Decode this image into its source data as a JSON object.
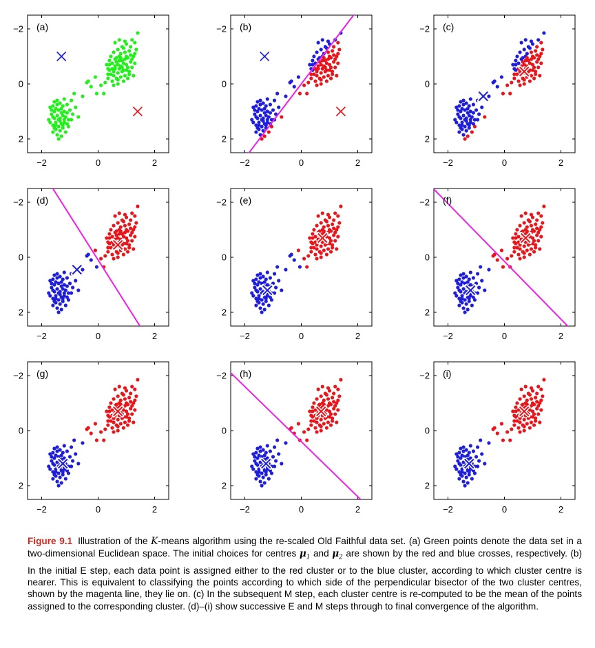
{
  "chart_data": {
    "type": "scatter",
    "title": "Illustration of the K-means algorithm using the re-scaled Old Faithful data set",
    "xlim": [
      -2.5,
      2.5
    ],
    "ylim": [
      -2.5,
      2.5
    ],
    "xticks": [
      -2,
      0,
      2
    ],
    "yticks": [
      -2,
      0,
      2
    ],
    "xtick_labels": [
      "−2",
      "0",
      "2"
    ],
    "ytick_labels": [
      "2",
      "0",
      "−2"
    ],
    "colors": {
      "blue": "#1f1fdb",
      "red": "#e8161b",
      "green": "#22f01a",
      "magenta": "#f01ee8",
      "axis": "#000000"
    },
    "panels": [
      {
        "label": "(a)",
        "stage": "initial",
        "points": "all-green",
        "centers": [
          {
            "x": -1.3,
            "y": 1.0,
            "color": "blue",
            "style": "plain"
          },
          {
            "x": 1.4,
            "y": -1.0,
            "color": "red",
            "style": "plain"
          }
        ],
        "bisector": null,
        "assign_center": null
      },
      {
        "label": "(b)",
        "stage": "E",
        "points": "assigned",
        "centers": [
          {
            "x": -1.3,
            "y": 1.0,
            "color": "blue",
            "style": "plain"
          },
          {
            "x": 1.4,
            "y": -1.0,
            "color": "red",
            "style": "plain"
          }
        ],
        "bisector": {
          "slope": 1.35,
          "intercept": 0.0
        },
        "assign_center": [
          0.05,
          0.0
        ]
      },
      {
        "label": "(c)",
        "stage": "M",
        "points": "assigned",
        "centers": [
          {
            "x": -0.75,
            "y": -0.45,
            "color": "blue",
            "style": "outlined"
          },
          {
            "x": 0.7,
            "y": 0.45,
            "color": "red",
            "style": "outlined"
          }
        ],
        "bisector": null,
        "assign_center": [
          0.05,
          0.0
        ]
      },
      {
        "label": "(d)",
        "stage": "E",
        "points": "assigned",
        "centers": [
          {
            "x": -0.75,
            "y": -0.45,
            "color": "blue",
            "style": "outlined"
          },
          {
            "x": 0.7,
            "y": 0.45,
            "color": "red",
            "style": "outlined"
          }
        ],
        "bisector": {
          "slope": -1.62,
          "intercept": -0.1
        },
        "assign_center": [
          -0.03,
          0.0
        ]
      },
      {
        "label": "(e)",
        "stage": "M",
        "points": "assigned",
        "centers": [
          {
            "x": -1.2,
            "y": -1.2,
            "color": "blue",
            "style": "outlined"
          },
          {
            "x": 0.75,
            "y": 0.7,
            "color": "red",
            "style": "outlined"
          }
        ],
        "bisector": null,
        "assign_center": [
          -0.03,
          0.0
        ]
      },
      {
        "label": "(f)",
        "stage": "E",
        "points": "assigned",
        "centers": [
          {
            "x": -1.2,
            "y": -1.2,
            "color": "blue",
            "style": "outlined"
          },
          {
            "x": 0.75,
            "y": 0.7,
            "color": "red",
            "style": "outlined"
          }
        ],
        "bisector": {
          "slope": -1.05,
          "intercept": -0.15
        },
        "assign_center": [
          -0.15,
          -0.25
        ]
      },
      {
        "label": "(g)",
        "stage": "M",
        "points": "assigned",
        "centers": [
          {
            "x": -1.25,
            "y": -1.2,
            "color": "blue",
            "style": "outlined"
          },
          {
            "x": 0.7,
            "y": 0.7,
            "color": "red",
            "style": "outlined"
          }
        ],
        "bisector": null,
        "assign_center": [
          -0.15,
          -0.25
        ]
      },
      {
        "label": "(h)",
        "stage": "E",
        "points": "assigned",
        "centers": [
          {
            "x": -1.25,
            "y": -1.2,
            "color": "blue",
            "style": "outlined"
          },
          {
            "x": 0.7,
            "y": 0.7,
            "color": "red",
            "style": "outlined"
          }
        ],
        "bisector": {
          "slope": -1.0,
          "intercept": -0.4
        },
        "assign_center": [
          -0.15,
          -0.25
        ]
      },
      {
        "label": "(i)",
        "stage": "M",
        "points": "assigned",
        "centers": [
          {
            "x": -1.25,
            "y": -1.2,
            "color": "blue",
            "style": "outlined"
          },
          {
            "x": 0.7,
            "y": 0.7,
            "color": "red",
            "style": "outlined"
          }
        ],
        "bisector": null,
        "assign_center": [
          -0.15,
          -0.25
        ]
      }
    ],
    "points": [
      {
        "x": -1.55,
        "y": -0.65
      },
      {
        "x": -1.45,
        "y": -0.6
      },
      {
        "x": -1.6,
        "y": -0.8
      },
      {
        "x": -1.35,
        "y": -0.7
      },
      {
        "x": -1.2,
        "y": -0.55
      },
      {
        "x": -1.5,
        "y": -0.9
      },
      {
        "x": -1.7,
        "y": -0.85
      },
      {
        "x": -1.4,
        "y": -0.95
      },
      {
        "x": -1.25,
        "y": -0.8
      },
      {
        "x": -1.1,
        "y": -0.75
      },
      {
        "x": -1.55,
        "y": -1.0
      },
      {
        "x": -1.65,
        "y": -1.1
      },
      {
        "x": -1.3,
        "y": -1.05
      },
      {
        "x": -1.45,
        "y": -1.15
      },
      {
        "x": -1.2,
        "y": -1.0
      },
      {
        "x": -1.0,
        "y": -0.95
      },
      {
        "x": -1.55,
        "y": -1.25
      },
      {
        "x": -1.75,
        "y": -1.3
      },
      {
        "x": -1.35,
        "y": -1.25
      },
      {
        "x": -1.15,
        "y": -1.2
      },
      {
        "x": -1.5,
        "y": -1.4
      },
      {
        "x": -1.6,
        "y": -1.5
      },
      {
        "x": -1.3,
        "y": -1.45
      },
      {
        "x": -1.4,
        "y": -1.55
      },
      {
        "x": -1.2,
        "y": -1.4
      },
      {
        "x": -1.05,
        "y": -1.3
      },
      {
        "x": -1.5,
        "y": -1.65
      },
      {
        "x": -1.35,
        "y": -1.7
      },
      {
        "x": -1.6,
        "y": -1.75
      },
      {
        "x": -1.25,
        "y": -1.6
      },
      {
        "x": -1.45,
        "y": -1.85
      },
      {
        "x": -1.3,
        "y": -1.9
      },
      {
        "x": -1.4,
        "y": -2.0
      },
      {
        "x": -1.15,
        "y": -1.75
      },
      {
        "x": -1.05,
        "y": -1.55
      },
      {
        "x": -0.95,
        "y": -1.3
      },
      {
        "x": -1.25,
        "y": -1.15
      },
      {
        "x": -1.4,
        "y": -1.3
      },
      {
        "x": -1.6,
        "y": -1.2
      },
      {
        "x": -1.1,
        "y": -1.05
      },
      {
        "x": -1.3,
        "y": -0.9
      },
      {
        "x": -1.45,
        "y": -0.75
      },
      {
        "x": -1.65,
        "y": -0.95
      },
      {
        "x": -1.2,
        "y": -1.3
      },
      {
        "x": -1.5,
        "y": -1.5
      },
      {
        "x": -1.35,
        "y": -1.35
      },
      {
        "x": -1.25,
        "y": -1.5
      },
      {
        "x": -1.55,
        "y": -1.6
      },
      {
        "x": -1.1,
        "y": -1.45
      },
      {
        "x": -1.7,
        "y": -1.4
      },
      {
        "x": -0.95,
        "y": -0.6
      },
      {
        "x": -0.85,
        "y": -0.35
      },
      {
        "x": -0.8,
        "y": -0.85
      },
      {
        "x": -0.7,
        "y": -1.2
      },
      {
        "x": -0.55,
        "y": -0.45
      },
      {
        "x": -0.9,
        "y": -1.1
      },
      {
        "x": -0.4,
        "y": 0.05
      },
      {
        "x": -0.35,
        "y": 0.1
      },
      {
        "x": -0.25,
        "y": -0.1
      },
      {
        "x": -0.05,
        "y": -0.35
      },
      {
        "x": 0.2,
        "y": -0.35
      },
      {
        "x": 0.1,
        "y": -0.05
      },
      {
        "x": 0.25,
        "y": 0.05
      },
      {
        "x": 0.35,
        "y": 0.35
      },
      {
        "x": 0.3,
        "y": 0.7
      },
      {
        "x": 0.4,
        "y": 0.85
      },
      {
        "x": -0.1,
        "y": 0.25
      },
      {
        "x": 0.55,
        "y": 0.3
      },
      {
        "x": 0.6,
        "y": 0.55
      },
      {
        "x": 0.7,
        "y": 0.4
      },
      {
        "x": 0.8,
        "y": 0.65
      },
      {
        "x": 0.9,
        "y": 0.5
      },
      {
        "x": 0.65,
        "y": 0.8
      },
      {
        "x": 0.75,
        "y": 1.0
      },
      {
        "x": 0.85,
        "y": 0.85
      },
      {
        "x": 1.0,
        "y": 0.7
      },
      {
        "x": 1.05,
        "y": 0.95
      },
      {
        "x": 0.95,
        "y": 1.15
      },
      {
        "x": 1.15,
        "y": 0.8
      },
      {
        "x": 1.1,
        "y": 1.2
      },
      {
        "x": 1.25,
        "y": 1.0
      },
      {
        "x": 0.5,
        "y": 0.75
      },
      {
        "x": 0.45,
        "y": 1.0
      },
      {
        "x": 0.55,
        "y": 1.15
      },
      {
        "x": 0.7,
        "y": 1.25
      },
      {
        "x": 0.85,
        "y": 1.35
      },
      {
        "x": 1.0,
        "y": 1.45
      },
      {
        "x": 1.3,
        "y": 1.5
      },
      {
        "x": 1.4,
        "y": 1.85
      },
      {
        "x": 1.2,
        "y": 1.6
      },
      {
        "x": 0.6,
        "y": 1.5
      },
      {
        "x": 0.75,
        "y": 1.6
      },
      {
        "x": 0.4,
        "y": 0.5
      },
      {
        "x": 0.35,
        "y": 0.2
      },
      {
        "x": 0.5,
        "y": 0.1
      },
      {
        "x": 0.65,
        "y": 0.2
      },
      {
        "x": 0.8,
        "y": 0.25
      },
      {
        "x": 0.95,
        "y": 0.3
      },
      {
        "x": 1.1,
        "y": 0.45
      },
      {
        "x": 1.2,
        "y": 0.6
      },
      {
        "x": 1.3,
        "y": 0.75
      },
      {
        "x": 1.25,
        "y": 0.3
      },
      {
        "x": 0.9,
        "y": 0.1
      },
      {
        "x": 0.7,
        "y": 0.0
      },
      {
        "x": 0.55,
        "y": -0.05
      },
      {
        "x": 1.05,
        "y": 0.2
      },
      {
        "x": 0.45,
        "y": 0.35
      },
      {
        "x": 0.6,
        "y": 0.65
      },
      {
        "x": 0.75,
        "y": 0.55
      },
      {
        "x": 0.9,
        "y": 0.75
      },
      {
        "x": 1.0,
        "y": 1.0
      },
      {
        "x": 0.8,
        "y": 1.1
      },
      {
        "x": 0.65,
        "y": 0.95
      },
      {
        "x": 1.15,
        "y": 1.05
      },
      {
        "x": 1.35,
        "y": 1.25
      },
      {
        "x": 0.95,
        "y": 0.9
      },
      {
        "x": 0.85,
        "y": 0.45
      },
      {
        "x": 0.7,
        "y": 0.7
      },
      {
        "x": 1.2,
        "y": 0.9
      },
      {
        "x": 0.5,
        "y": 0.55
      },
      {
        "x": 1.05,
        "y": 0.6
      },
      {
        "x": 0.9,
        "y": 1.3
      },
      {
        "x": 0.6,
        "y": 0.9
      },
      {
        "x": 1.3,
        "y": 1.1
      },
      {
        "x": 0.75,
        "y": 0.85
      },
      {
        "x": 1.0,
        "y": 0.5
      },
      {
        "x": 0.8,
        "y": 0.95
      },
      {
        "x": 0.55,
        "y": 0.45
      },
      {
        "x": 1.1,
        "y": 0.35
      },
      {
        "x": 0.35,
        "y": 0.55
      },
      {
        "x": 0.95,
        "y": 1.55
      },
      {
        "x": 1.15,
        "y": 1.35
      },
      {
        "x": 0.7,
        "y": 0.15
      },
      {
        "x": 0.4,
        "y": 0.7
      },
      {
        "x": 0.85,
        "y": 0.6
      }
    ]
  },
  "caption": {
    "label": "Figure 9.1",
    "seg1": "Illustration of the ",
    "k": "K",
    "seg2": "-means algorithm using the re-scaled Old Faithful data set.  (a) Green points denote the data set in a two-dimensional Euclidean space.  The initial choices for centres ",
    "mu": "μ",
    "sub1": "1",
    "seg3": " and ",
    "sub2": "2",
    "seg4": " are shown by the red and blue crosses, respectively.  (b) In the initial E step, each data point is assigned either to the red cluster or to the blue cluster, according to which cluster centre is nearer.  This is equivalent to classifying the points according to which side of the perpendicular bisector of the two cluster centres, shown by the magenta line, they lie on.  (c) In the subsequent M step, each cluster centre is re-computed to be the mean of the points assigned to the corresponding cluster.  (d)–(i) show successive E and M steps through to final convergence of the algorithm."
  }
}
